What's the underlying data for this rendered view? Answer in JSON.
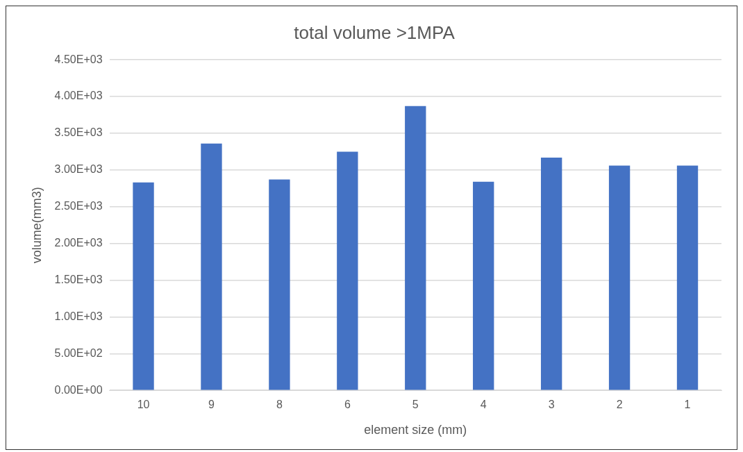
{
  "chart_data": {
    "type": "bar",
    "title": "total volume >1MPA",
    "xlabel": "element size (mm)",
    "ylabel": "volume(mm3)",
    "categories": [
      "10",
      "9",
      "8",
      "6",
      "5",
      "4",
      "3",
      "2",
      "1"
    ],
    "values": [
      2830,
      3360,
      2870,
      3250,
      3870,
      2840,
      3170,
      3060,
      3060
    ],
    "color": "#4472c4",
    "ylim": [
      0,
      4500
    ],
    "yticks": [
      {
        "value": 0,
        "label": "0.00E+00"
      },
      {
        "value": 500,
        "label": "5.00E+02"
      },
      {
        "value": 1000,
        "label": "1.00E+03"
      },
      {
        "value": 1500,
        "label": "1.50E+03"
      },
      {
        "value": 2000,
        "label": "2.00E+03"
      },
      {
        "value": 2500,
        "label": "2.50E+03"
      },
      {
        "value": 3000,
        "label": "3.00E+03"
      },
      {
        "value": 3500,
        "label": "3.50E+03"
      },
      {
        "value": 4000,
        "label": "4.00E+03"
      },
      {
        "value": 4500,
        "label": "4.50E+03"
      }
    ],
    "grid": "y",
    "legend": false
  }
}
